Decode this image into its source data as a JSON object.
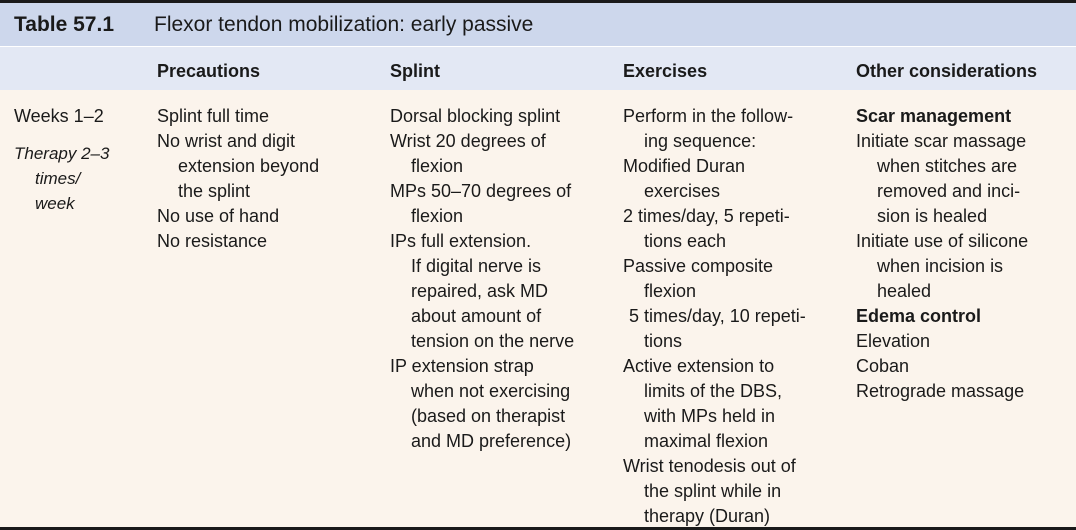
{
  "table": {
    "number": "Table 57.1",
    "title": "Flexor tendon mobilization: early passive",
    "headers": {
      "precautions": "Precautions",
      "splint": "Splint",
      "exercises": "Exercises",
      "other": "Other considerations"
    },
    "row": {
      "period": "Weeks 1–2",
      "therapy": [
        "Therapy 2–3",
        "times/",
        "week"
      ],
      "precautions": [
        {
          "text": "Splint full time",
          "indent": false
        },
        {
          "text": "No wrist and digit",
          "indent": false
        },
        {
          "text": "extension beyond",
          "indent": true
        },
        {
          "text": "the splint",
          "indent": true
        },
        {
          "text": "No use of hand",
          "indent": false
        },
        {
          "text": "No resistance",
          "indent": false
        }
      ],
      "splint": [
        {
          "text": "Dorsal blocking splint",
          "indent": false
        },
        {
          "text": "Wrist 20 degrees of",
          "indent": false
        },
        {
          "text": "flexion",
          "indent": true
        },
        {
          "text": "MPs 50–70 degrees of",
          "indent": false
        },
        {
          "text": "flexion",
          "indent": true
        },
        {
          "text": "IPs full extension.",
          "indent": false
        },
        {
          "text": "If digital nerve is",
          "indent": true
        },
        {
          "text": "repaired, ask MD",
          "indent": true
        },
        {
          "text": "about amount of",
          "indent": true
        },
        {
          "text": "tension on the nerve",
          "indent": true
        },
        {
          "text": "IP extension strap",
          "indent": false
        },
        {
          "text": "when not exercising",
          "indent": true
        },
        {
          "text": "(based on therapist",
          "indent": true
        },
        {
          "text": "and MD preference)",
          "indent": true
        }
      ],
      "exercises": [
        {
          "text": "Perform in the follow-",
          "indent": false
        },
        {
          "text": "ing sequence:",
          "indent": true
        },
        {
          "text": "Modified Duran",
          "indent": false
        },
        {
          "text": "exercises",
          "indent": true
        },
        {
          "text": "2 times/day, 5 repeti-",
          "indent": false
        },
        {
          "text": "tions each",
          "indent": true
        },
        {
          "text": "Passive composite",
          "indent": false
        },
        {
          "text": "flexion",
          "indent": true
        },
        {
          "text": "5 times/day, 10 repeti-",
          "indent": "small"
        },
        {
          "text": "tions",
          "indent": true
        },
        {
          "text": "Active extension to",
          "indent": false
        },
        {
          "text": "limits of the DBS,",
          "indent": true
        },
        {
          "text": "with MPs held in",
          "indent": true
        },
        {
          "text": "maximal flexion",
          "indent": true
        },
        {
          "text": "Wrist tenodesis out of",
          "indent": false
        },
        {
          "text": "the splint while in",
          "indent": true
        },
        {
          "text": "therapy (Duran)",
          "indent": true
        }
      ],
      "other": [
        {
          "text": "Scar management",
          "indent": false,
          "bold": true
        },
        {
          "text": "Initiate scar massage",
          "indent": false
        },
        {
          "text": "when stitches are",
          "indent": true
        },
        {
          "text": "removed and inci-",
          "indent": true
        },
        {
          "text": "sion is healed",
          "indent": true
        },
        {
          "text": "Initiate use of silicone",
          "indent": false
        },
        {
          "text": "when incision is",
          "indent": true
        },
        {
          "text": "healed",
          "indent": true
        },
        {
          "text": "Edema control",
          "indent": false,
          "bold": true
        },
        {
          "text": "Elevation",
          "indent": false
        },
        {
          "text": "Coban",
          "indent": false
        },
        {
          "text": "Retrograde massage",
          "indent": false
        }
      ]
    }
  }
}
